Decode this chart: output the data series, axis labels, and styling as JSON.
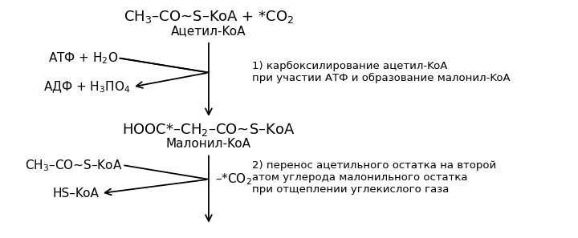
{
  "bg_color": "#ffffff",
  "fig_width": 7.2,
  "fig_height": 2.97,
  "title_formula": "CH$_3$–CO~S–KoA + *CO$_2$",
  "title_label": "Ацетил-KoA",
  "atf_label": "АТФ + Н$_2$О",
  "adf_label": "АДФ + Н$_3$ПО$_4$",
  "malonyl_formula": "HOOC*–CH$_2$–CO~S–KoA",
  "malonyl_label": "Малонил-KoA",
  "acetyl_koa2": "CH$_3$–CO~S–KoA",
  "hs_koa": "HS–KoA",
  "minus_co2": "–*CO$_2$",
  "note1_line1": "1) карбоксилирование ацетил-KoA",
  "note1_line2": "при участии АТФ и образование малонил-KoA",
  "note2_line1": "2) перенос ацетильного остатка на второй",
  "note2_line2": "атом углерода малонильного остатка",
  "note2_line3": "при отщеплении углекислого газа"
}
